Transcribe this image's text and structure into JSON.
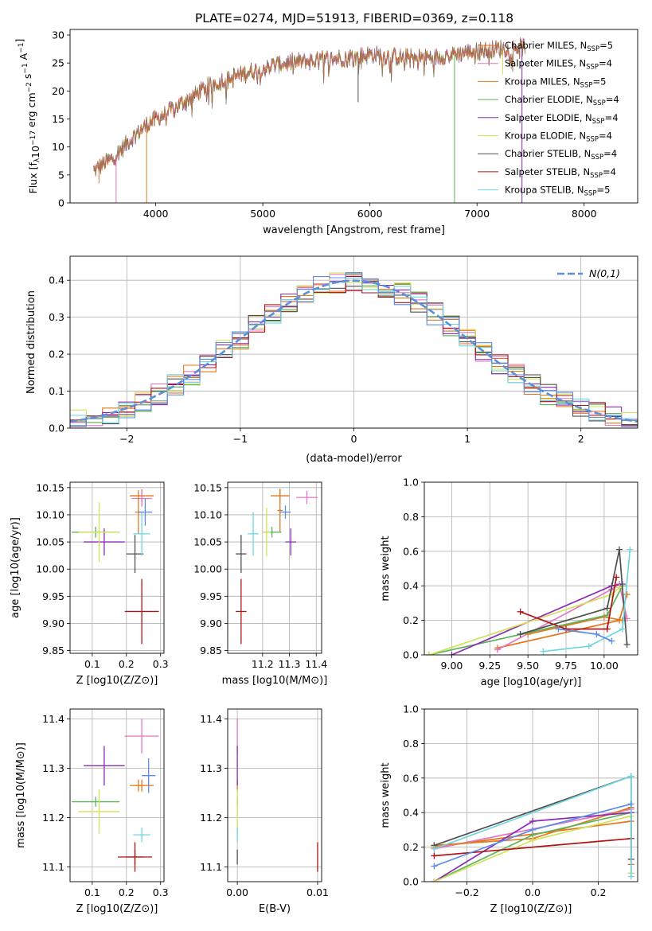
{
  "figure": {
    "title": "PLATE=0274, MJD=51913, FIBERID=0369, z=0.118"
  },
  "colors": {
    "series": [
      "#e6731a",
      "#e377c2",
      "#e07a1f",
      "#5bb45b",
      "#8c2bb5",
      "#d4e15a",
      "#505050",
      "#b01515",
      "#6fd6e0"
    ],
    "chabrier_miles": "#e6731a",
    "salpeter_miles": "#e377c2",
    "kroupa_miles": "#e07a1f",
    "chabrier_elodie": "#5bb45b",
    "salpeter_elodie": "#8c2bb5",
    "kroupa_elodie": "#d4e15a",
    "chabrier_stelib": "#505050",
    "salpeter_stelib": "#b01515",
    "kroupa_stelib": "#6fd6e0",
    "extra_blue": "#5b8ce6",
    "normal_curve": "#5b8fd9",
    "grid": "#b0b0b0"
  },
  "chart_data": [
    {
      "id": "spectrum",
      "type": "line",
      "xlabel": "wavelength [Angstrom, rest frame]",
      "ylabel": "Flux [f_λ 10^-17 erg cm^-2 s^-1 A^-1]",
      "xlim": [
        3200,
        8500
      ],
      "ylim": [
        0,
        31
      ],
      "xticks": [
        4000,
        5000,
        6000,
        7000,
        8000
      ],
      "yticks": [
        0,
        5,
        10,
        15,
        20,
        25,
        30
      ],
      "grid": false,
      "legend_position": "right",
      "legend": [
        {
          "label": "Chabrier MILES, N",
          "sub": "SSP",
          "suffix": "=5"
        },
        {
          "label": "Salpeter MILES, N",
          "sub": "SSP",
          "suffix": "=4"
        },
        {
          "label": "Kroupa MILES, N",
          "sub": "SSP",
          "suffix": "=5"
        },
        {
          "label": "Chabrier ELODIE, N",
          "sub": "SSP",
          "suffix": "=4"
        },
        {
          "label": "Salpeter ELODIE, N",
          "sub": "SSP",
          "suffix": "=4"
        },
        {
          "label": "Kroupa ELODIE, N",
          "sub": "SSP",
          "suffix": "=4"
        },
        {
          "label": "Chabrier STELIB, N",
          "sub": "SSP",
          "suffix": "=4"
        },
        {
          "label": "Salpeter STELIB, N",
          "sub": "SSP",
          "suffix": "=4"
        },
        {
          "label": "Kroupa STELIB, N",
          "sub": "SSP",
          "suffix": "=5"
        }
      ],
      "continuum": {
        "x": [
          3400,
          3600,
          3800,
          3950,
          4100,
          4300,
          4500,
          4800,
          5000,
          5200,
          5500,
          5800,
          6000,
          6300,
          6600,
          6900,
          7200,
          7500
        ],
        "y": [
          5.5,
          8,
          12,
          14.5,
          16,
          18.5,
          21,
          23,
          24,
          25,
          25.5,
          26,
          26.5,
          26,
          26,
          27,
          27.5,
          28
        ]
      },
      "dropouts": [
        {
          "x": 3470,
          "min": 3.5
        },
        {
          "x": 3630,
          "min": 0
        },
        {
          "x": 3915,
          "min": 0
        },
        {
          "x": 6790,
          "min": 0
        },
        {
          "x": 7420,
          "min": 0
        },
        {
          "x": 7240,
          "min": 23
        },
        {
          "x": 5890,
          "min": 18
        }
      ]
    },
    {
      "id": "residual-hist",
      "type": "line",
      "xlabel": "(data-model)/error",
      "ylabel": "Normed distribution",
      "xlim": [
        -2.5,
        2.5
      ],
      "ylim": [
        0,
        0.465
      ],
      "xticks": [
        -2,
        -1,
        0,
        1,
        2
      ],
      "yticks": [
        0.0,
        0.1,
        0.2,
        0.3,
        0.4
      ],
      "grid": true,
      "legend_label": "N(0,1)",
      "bins": 35,
      "normal": {
        "mean": 0,
        "std": 1
      }
    },
    {
      "id": "age-vs-z",
      "type": "scatter",
      "xlabel": "Z [log10(Z/Z⊙)]",
      "ylabel": "age  [log10(age/yr)]",
      "xlim": [
        0.035,
        0.31
      ],
      "ylim": [
        9.845,
        10.16
      ],
      "xticks": [
        0.1,
        0.2,
        0.3
      ],
      "yticks": [
        9.85,
        9.9,
        9.95,
        10.0,
        10.05,
        10.1,
        10.15
      ],
      "grid": true,
      "points": [
        {
          "x": 0.245,
          "y": 10.135,
          "xerr": 0.035,
          "yerr": 0.012,
          "c": 0
        },
        {
          "x": 0.245,
          "y": 10.13,
          "xerr": 0.03,
          "yerr": 0.015,
          "c": 1
        },
        {
          "x": 0.235,
          "y": 10.105,
          "xerr": 0.01,
          "yerr": 0.04,
          "c": 2
        },
        {
          "x": 0.11,
          "y": 10.068,
          "xerr": 0.07,
          "yerr": 0.01,
          "c": 3
        },
        {
          "x": 0.135,
          "y": 10.05,
          "xerr": 0.06,
          "yerr": 0.025,
          "c": 4
        },
        {
          "x": 0.12,
          "y": 10.068,
          "xerr": 0.06,
          "yerr": 0.055,
          "c": 5
        },
        {
          "x": 0.225,
          "y": 10.028,
          "xerr": 0.025,
          "yerr": 0.035,
          "c": 6
        },
        {
          "x": 0.245,
          "y": 9.922,
          "xerr": 0.05,
          "yerr": 0.06,
          "c": 7
        },
        {
          "x": 0.245,
          "y": 10.065,
          "xerr": 0.025,
          "yerr": 0.04,
          "c": 8
        },
        {
          "x": 0.255,
          "y": 10.105,
          "xerr": 0.02,
          "yerr": 0.025,
          "c": 9
        }
      ]
    },
    {
      "id": "age-vs-mass",
      "type": "scatter",
      "xlabel": "mass [log10(M/M⊙)]",
      "ylabel": "",
      "xlim": [
        11.07,
        11.42
      ],
      "ylim": [
        9.845,
        10.16
      ],
      "xticks": [
        11.2,
        11.3,
        11.4
      ],
      "yticks": [
        9.85,
        9.9,
        9.95,
        10.0,
        10.05,
        10.1,
        10.15
      ],
      "grid": true,
      "points": [
        {
          "x": 11.265,
          "y": 10.135,
          "xerr": 0.035,
          "yerr": 0.012,
          "c": 0
        },
        {
          "x": 11.365,
          "y": 10.132,
          "xerr": 0.04,
          "yerr": 0.012,
          "c": 1
        },
        {
          "x": 11.265,
          "y": 10.108,
          "xerr": 0.01,
          "yerr": 0.04,
          "c": 2
        },
        {
          "x": 11.235,
          "y": 10.068,
          "xerr": 0.035,
          "yerr": 0.01,
          "c": 3
        },
        {
          "x": 11.305,
          "y": 10.05,
          "xerr": 0.02,
          "yerr": 0.025,
          "c": 4
        },
        {
          "x": 11.215,
          "y": 10.068,
          "xerr": 0.015,
          "yerr": 0.045,
          "c": 5
        },
        {
          "x": 11.12,
          "y": 10.028,
          "xerr": 0.02,
          "yerr": 0.035,
          "c": 6
        },
        {
          "x": 11.12,
          "y": 9.922,
          "xerr": 0.02,
          "yerr": 0.06,
          "c": 7
        },
        {
          "x": 11.165,
          "y": 10.065,
          "xerr": 0.02,
          "yerr": 0.04,
          "c": 8
        },
        {
          "x": 11.285,
          "y": 10.105,
          "xerr": 0.02,
          "yerr": 0.012,
          "c": 9
        }
      ]
    },
    {
      "id": "weight-vs-age",
      "type": "line",
      "xlabel": "age  [log10(age/yr)]",
      "ylabel": "mass weight",
      "xlim": [
        8.82,
        10.22
      ],
      "ylim": [
        0,
        1
      ],
      "xticks": [
        9.0,
        9.25,
        9.5,
        9.75,
        10.0
      ],
      "yticks": [
        0.0,
        0.2,
        0.4,
        0.6,
        0.8,
        1.0
      ],
      "grid": true,
      "series": [
        {
          "c": 0,
          "x": [
            9.3,
            10.1,
            10.15
          ],
          "y": [
            0.04,
            0.2,
            0.35
          ]
        },
        {
          "c": 1,
          "x": [
            9.3,
            10.05,
            10.1,
            10.15
          ],
          "y": [
            0.03,
            0.38,
            0.41,
            0.21
          ]
        },
        {
          "c": 2,
          "x": [
            9.5,
            10.0,
            10.12
          ],
          "y": [
            0.12,
            0.22,
            0.2
          ]
        },
        {
          "c": 3,
          "x": [
            8.85,
            10.02,
            10.12
          ],
          "y": [
            0.0,
            0.23,
            0.4
          ]
        },
        {
          "c": 4,
          "x": [
            9.0,
            10.05,
            10.12
          ],
          "y": [
            0.0,
            0.4,
            0.41
          ]
        },
        {
          "c": 5,
          "x": [
            8.85,
            10.05,
            10.1
          ],
          "y": [
            0.0,
            0.35,
            0.39
          ]
        },
        {
          "c": 6,
          "x": [
            9.45,
            10.02,
            10.1,
            10.15
          ],
          "y": [
            0.12,
            0.27,
            0.61,
            0.06
          ]
        },
        {
          "c": 7,
          "x": [
            9.45,
            9.75,
            10.02,
            10.08
          ],
          "y": [
            0.25,
            0.15,
            0.15,
            0.45
          ]
        },
        {
          "c": 8,
          "x": [
            9.6,
            9.9,
            10.12,
            10.17
          ],
          "y": [
            0.02,
            0.05,
            0.15,
            0.61
          ]
        },
        {
          "c": 9,
          "x": [
            9.7,
            9.95,
            10.05
          ],
          "y": [
            0.15,
            0.12,
            0.08
          ]
        }
      ]
    },
    {
      "id": "mass-vs-z",
      "type": "scatter",
      "xlabel": "Z [log10(Z/Z⊙)]",
      "ylabel": "mass [log10(M/M⊙)]",
      "xlim": [
        0.035,
        0.31
      ],
      "ylim": [
        11.07,
        11.42
      ],
      "xticks": [
        0.1,
        0.2,
        0.3
      ],
      "yticks": [
        11.1,
        11.2,
        11.3,
        11.4
      ],
      "grid": true,
      "points": [
        {
          "x": 0.245,
          "y": 11.265,
          "xerr": 0.035,
          "yerr": 0.012,
          "c": 0
        },
        {
          "x": 0.245,
          "y": 11.365,
          "xerr": 0.05,
          "yerr": 0.035,
          "c": 1
        },
        {
          "x": 0.235,
          "y": 11.265,
          "xerr": 0.01,
          "yerr": 0.012,
          "c": 2
        },
        {
          "x": 0.11,
          "y": 11.232,
          "xerr": 0.07,
          "yerr": 0.01,
          "c": 3
        },
        {
          "x": 0.135,
          "y": 11.305,
          "xerr": 0.06,
          "yerr": 0.04,
          "c": 4
        },
        {
          "x": 0.12,
          "y": 11.212,
          "xerr": 0.06,
          "yerr": 0.045,
          "c": 5
        },
        {
          "x": 0.225,
          "y": 11.12,
          "xerr": 0.025,
          "yerr": 0.015,
          "c": 6
        },
        {
          "x": 0.225,
          "y": 11.12,
          "xerr": 0.05,
          "yerr": 0.03,
          "c": 7
        },
        {
          "x": 0.245,
          "y": 11.165,
          "xerr": 0.025,
          "yerr": 0.015,
          "c": 8
        },
        {
          "x": 0.265,
          "y": 11.285,
          "xerr": 0.02,
          "yerr": 0.035,
          "c": 9
        }
      ]
    },
    {
      "id": "mass-vs-ebv",
      "type": "scatter",
      "xlabel": "E(B-V)",
      "ylabel": "",
      "xlim": [
        -0.0012,
        0.0105
      ],
      "ylim": [
        11.07,
        11.42
      ],
      "xticks": [
        0.0,
        0.01
      ],
      "yticks": [
        11.1,
        11.2,
        11.3,
        11.4
      ],
      "grid": true,
      "points": [
        {
          "x": 0.0,
          "y": 11.265,
          "xerr": 5e-05,
          "yerr": 0.012,
          "c": 0
        },
        {
          "x": 0.0,
          "y": 11.365,
          "xerr": 5e-05,
          "yerr": 0.035,
          "c": 1
        },
        {
          "x": 0.0,
          "y": 11.232,
          "xerr": 5e-05,
          "yerr": 0.01,
          "c": 3
        },
        {
          "x": 0.0,
          "y": 11.305,
          "xerr": 5e-05,
          "yerr": 0.04,
          "c": 4
        },
        {
          "x": 0.0,
          "y": 11.212,
          "xerr": 5e-05,
          "yerr": 0.045,
          "c": 5
        },
        {
          "x": 0.0,
          "y": 11.12,
          "xerr": 5e-05,
          "yerr": 0.015,
          "c": 6
        },
        {
          "x": 0.01,
          "y": 11.12,
          "xerr": 5e-05,
          "yerr": 0.03,
          "c": 7
        },
        {
          "x": 0.0,
          "y": 11.165,
          "xerr": 5e-05,
          "yerr": 0.015,
          "c": 8
        }
      ]
    },
    {
      "id": "weight-vs-z",
      "type": "line",
      "xlabel": "Z [log10(Z/Z⊙)]",
      "ylabel": "mass weight",
      "xlim": [
        -0.33,
        0.32
      ],
      "ylim": [
        0,
        1
      ],
      "xticks": [
        -0.2,
        0.0,
        0.2
      ],
      "yticks": [
        0.0,
        0.2,
        0.4,
        0.6,
        0.8,
        1.0
      ],
      "grid": true,
      "series": [
        {
          "c": 0,
          "x": [
            -0.3,
            0.3,
            0.3
          ],
          "y": [
            0.2,
            0.35,
            0.1
          ]
        },
        {
          "c": 1,
          "x": [
            -0.3,
            0.3,
            0.3
          ],
          "y": [
            0.19,
            0.42,
            0.05
          ]
        },
        {
          "c": 2,
          "x": [
            -0.3,
            0.0,
            0.3
          ],
          "y": [
            0.21,
            0.25,
            0.43
          ]
        },
        {
          "c": 3,
          "x": [
            -0.3,
            0.0,
            0.3
          ],
          "y": [
            0.0,
            0.27,
            0.4
          ]
        },
        {
          "c": 4,
          "x": [
            -0.3,
            0.0,
            0.3
          ],
          "y": [
            0.0,
            0.35,
            0.4
          ]
        },
        {
          "c": 5,
          "x": [
            -0.3,
            0.0,
            0.3,
            0.3
          ],
          "y": [
            0.0,
            0.24,
            0.38,
            0.05
          ]
        },
        {
          "c": 6,
          "x": [
            -0.3,
            0.3,
            0.3
          ],
          "y": [
            0.21,
            0.61,
            0.13
          ]
        },
        {
          "c": 7,
          "x": [
            -0.3,
            0.3
          ],
          "y": [
            0.15,
            0.25
          ]
        },
        {
          "c": 8,
          "x": [
            -0.3,
            0.3,
            0.3
          ],
          "y": [
            0.19,
            0.61,
            0.03
          ]
        },
        {
          "c": 9,
          "x": [
            -0.3,
            0.0,
            0.3
          ],
          "y": [
            0.09,
            0.3,
            0.45
          ]
        }
      ]
    }
  ]
}
